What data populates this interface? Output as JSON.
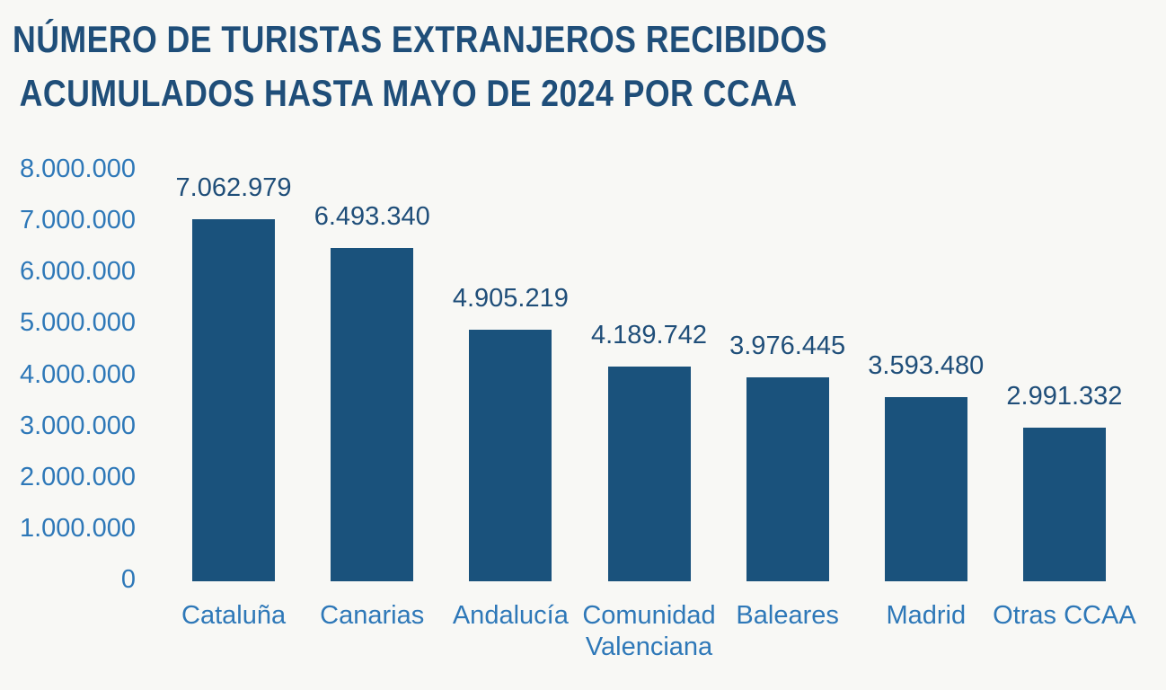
{
  "chart_data": {
    "type": "bar",
    "title_lines": [
      "NÚMERO DE TURISTAS EXTRANJEROS RECIBIDOS",
      "ACUMULADOS HASTA MAYO DE 2024 POR CCAA"
    ],
    "categories": [
      "Cataluña",
      "Canarias",
      "Andalucía",
      "Comunidad Valenciana",
      "Baleares",
      "Madrid",
      "Otras CCAA"
    ],
    "values": [
      7062979,
      6493340,
      4905219,
      4189742,
      3976445,
      3593480,
      2991332
    ],
    "value_labels": [
      "7.062.979",
      "6.493.340",
      "4.905.219",
      "4.189.742",
      "3.976.445",
      "3.593.480",
      "2.991.332"
    ],
    "y_ticks": [
      {
        "value": 8000000,
        "label": "8.000.000"
      },
      {
        "value": 7000000,
        "label": "7.000.000"
      },
      {
        "value": 6000000,
        "label": "6.000.000"
      },
      {
        "value": 5000000,
        "label": "5.000.000"
      },
      {
        "value": 4000000,
        "label": "4.000.000"
      },
      {
        "value": 3000000,
        "label": "3.000.000"
      },
      {
        "value": 2000000,
        "label": "2.000.000"
      },
      {
        "value": 1000000,
        "label": "1.000.000"
      },
      {
        "value": 0,
        "label": "0"
      }
    ],
    "ylim": [
      0,
      8000000
    ],
    "xlabel": "",
    "ylabel": "",
    "grid": false,
    "legend": false,
    "colors": {
      "background": "#f8f8f5",
      "bar": "#1a527c",
      "title": "#1f4e79",
      "value_labels": "#1f4e79",
      "axis_labels": "#2e78b8"
    }
  }
}
